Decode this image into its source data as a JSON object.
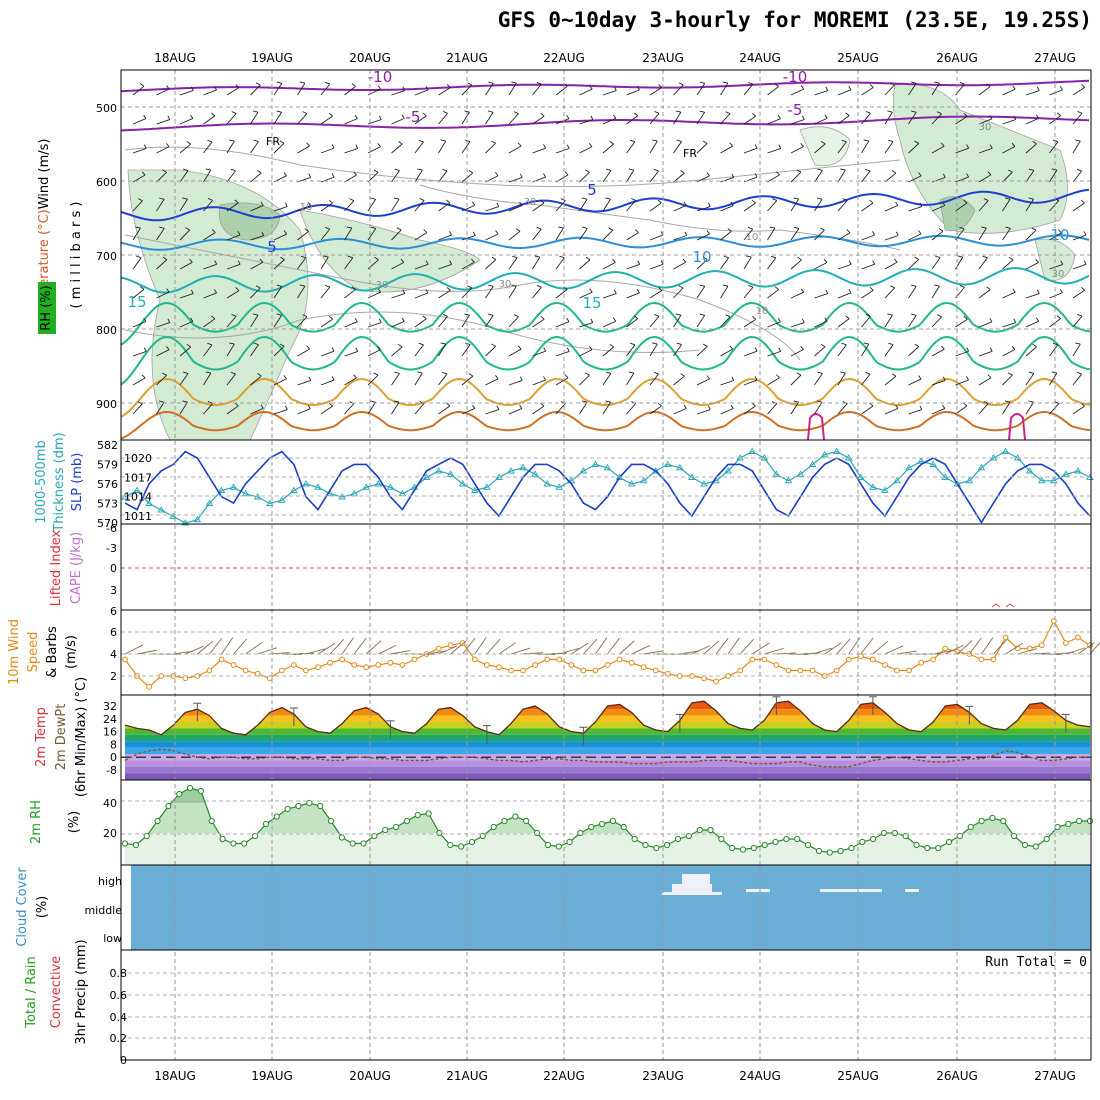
{
  "title": "GFS 0~10day 3-hourly for MOREMI (23.5E, 19.25S)",
  "dates": [
    "18AUG",
    "19AUG",
    "20AUG",
    "21AUG",
    "22AUG",
    "23AUG",
    "24AUG",
    "25AUG",
    "26AUG",
    "27AUG"
  ],
  "chart_data": [
    {
      "type": "line",
      "name": "upper-air",
      "ylabel_parts": [
        {
          "text": "RH (%)",
          "color": "#1f9e1f"
        },
        {
          "text": "Temperature (°C)",
          "color": "#d05a2a"
        },
        {
          "text": "Wind (m/s)",
          "color": "#000000"
        },
        {
          "text": "( m i l l i b a r s )",
          "color": "#000000"
        }
      ],
      "y_axis": {
        "label": "millibars",
        "ticks": [
          500,
          600,
          700,
          800,
          900
        ],
        "ylim": [
          450,
          950
        ],
        "inverted": true
      },
      "contour_labels": [
        "-10",
        "-10",
        "-5",
        "-5",
        "FR",
        "FR",
        "5",
        "5",
        "10",
        "10",
        "15",
        "15",
        "30",
        "30",
        "30",
        "30",
        "30",
        "10",
        "10",
        "10"
      ],
      "freezing_level_mb": [
        612,
        608,
        605,
        603,
        602,
        603,
        605,
        606,
        607,
        606,
        604,
        603,
        602,
        605,
        608,
        610,
        612,
        615,
        616,
        614,
        612,
        610,
        612,
        615,
        620,
        618,
        616,
        614,
        615,
        618,
        616,
        614
      ]
    },
    {
      "type": "line",
      "name": "slp-thickness",
      "ylabel_parts": [
        {
          "text": "1000-500mb",
          "color": "#2aa8b8"
        },
        {
          "text": "Thickness (dm)",
          "color": "#2aa8b8"
        },
        {
          "text": "SLP (mb)",
          "color": "#1a3fc8"
        }
      ],
      "y_axis_left": {
        "label": "Thickness (dm)",
        "ticks": [
          570,
          573,
          576,
          579,
          582
        ]
      },
      "y_axis_right": {
        "label": "SLP (mb)",
        "ticks": [
          1011,
          1014,
          1017,
          1020
        ]
      },
      "series": [
        {
          "name": "SLP (mb)",
          "color": "#1a3fc8",
          "values": [
            1013,
            1012,
            1016,
            1018,
            1019,
            1021,
            1020,
            1017,
            1014,
            1013,
            1016,
            1018,
            1020,
            1021,
            1019,
            1014,
            1012,
            1015,
            1018,
            1019,
            1019,
            1017,
            1014,
            1012,
            1015,
            1018,
            1019,
            1020,
            1019,
            1016,
            1013,
            1011,
            1014,
            1017,
            1019,
            1019,
            1018,
            1016,
            1013,
            1012,
            1014,
            1017,
            1019,
            1019,
            1018,
            1016,
            1013,
            1011,
            1014,
            1017,
            1019,
            1019,
            1018,
            1015,
            1012,
            1011,
            1014,
            1017,
            1019,
            1020,
            1019,
            1016,
            1013,
            1011,
            1014,
            1017,
            1019,
            1020,
            1019,
            1016,
            1013,
            1010,
            1013,
            1016,
            1018,
            1019,
            1019,
            1018,
            1016,
            1013,
            1011
          ]
        },
        {
          "name": "1000-500mb Thickness (dm)",
          "color": "#2aa8b8",
          "values": [
            574,
            575,
            573,
            572,
            571,
            570,
            570.5,
            573,
            575,
            575.5,
            574.5,
            574,
            573,
            573.5,
            575,
            576,
            575.5,
            574.5,
            574,
            574.5,
            575.5,
            576,
            575.5,
            574.5,
            575.5,
            577,
            578,
            577.5,
            576,
            575,
            575.5,
            577,
            578,
            578.5,
            577.5,
            576,
            575.5,
            576.5,
            578,
            579,
            578.5,
            577,
            576,
            576.5,
            578,
            579,
            578.5,
            577,
            576,
            576.5,
            578,
            580,
            581,
            580,
            577.5,
            576.5,
            577.5,
            579,
            580.5,
            581,
            580,
            577,
            575.5,
            575,
            576.5,
            578.5,
            579.5,
            579,
            577,
            576,
            576.5,
            578.5,
            580,
            581,
            580,
            578,
            576.5,
            576.5,
            577.5,
            578,
            577
          ]
        }
      ]
    },
    {
      "type": "line",
      "name": "instability",
      "ylabel_parts": [
        {
          "text": "Lifted Index",
          "color": "#d8323c"
        },
        {
          "text": "CAPE (J/kg)",
          "color": "#c070d0"
        }
      ],
      "y_axis": {
        "label": "Lifted Index",
        "ticks": [
          "-6",
          "-3",
          "0",
          "3",
          "6"
        ],
        "ylim": [
          -6,
          6
        ]
      },
      "series": []
    },
    {
      "type": "line",
      "name": "10m-wind",
      "ylabel_parts": [
        {
          "text": "10m Wind",
          "color": "#e68a14"
        },
        {
          "text": "Speed",
          "color": "#e68a14"
        },
        {
          "text": "& Barbs",
          "color": "#000000"
        },
        {
          "text": "(m/s)",
          "color": "#000000"
        }
      ],
      "y_axis": {
        "label": "(m/s)",
        "ticks": [
          2,
          4,
          6
        ],
        "ylim": [
          0,
          8
        ]
      },
      "series": [
        {
          "name": "10m Wind Speed",
          "color": "#e68a14",
          "values": [
            3.5,
            2,
            1,
            2,
            2,
            1.8,
            2,
            2.5,
            3.5,
            3,
            2.5,
            2.2,
            1.8,
            2.5,
            3,
            2.5,
            2.8,
            3.2,
            3.5,
            3,
            2.8,
            3,
            3.2,
            3,
            3.5,
            4,
            4.5,
            4.8,
            5,
            3.5,
            3,
            2.8,
            2.5,
            2.5,
            3,
            3.5,
            3.5,
            3,
            2.5,
            2.5,
            3,
            3.5,
            3.2,
            2.8,
            2.5,
            2.2,
            2,
            2,
            1.8,
            1.5,
            2,
            2.5,
            3.5,
            3.5,
            3,
            2.5,
            2.5,
            2.5,
            2,
            2.5,
            3.5,
            3.8,
            3.5,
            3,
            2.5,
            2.5,
            3.2,
            3.5,
            4.5,
            4.2,
            4,
            3.5,
            3.5,
            5.5,
            4.5,
            4.5,
            4.8,
            7,
            5,
            5.5,
            4.8
          ]
        }
      ]
    },
    {
      "type": "area",
      "name": "2m-temp",
      "ylabel_parts": [
        {
          "text": "2m Temp",
          "color": "#d8323c"
        },
        {
          "text": "2m DewPt",
          "color": "#7a5a30"
        },
        {
          "text": "(6hr Min/Max) (°C)",
          "color": "#000000"
        }
      ],
      "y_axis": {
        "label": "(°C)",
        "ticks": [
          32,
          24,
          16,
          8,
          0,
          -8
        ]
      },
      "series": [
        {
          "name": "2m Temp",
          "color": "#7a2020",
          "values": [
            20,
            18,
            17,
            14,
            20,
            28,
            30,
            26,
            18,
            15,
            14,
            20,
            28,
            31,
            27,
            19,
            16,
            15,
            21,
            29,
            31,
            27,
            19,
            16,
            15,
            21,
            30,
            31,
            26,
            19,
            16,
            14,
            21,
            30,
            32,
            27,
            19,
            16,
            15,
            22,
            32,
            33,
            28,
            20,
            17,
            16,
            23,
            34,
            35,
            29,
            21,
            18,
            17,
            23,
            34,
            35,
            29,
            21,
            17,
            16,
            23,
            33,
            34,
            28,
            21,
            17,
            16,
            22,
            32,
            33,
            28,
            21,
            18,
            17,
            23,
            33,
            34,
            29,
            23,
            20,
            19
          ]
        },
        {
          "name": "2m DewPt",
          "color": "#7a5a30",
          "values": [
            -2,
            2,
            4,
            5,
            4,
            2,
            0,
            -1,
            0,
            0,
            -1,
            -1,
            0,
            0,
            -1,
            -1,
            -1,
            -2,
            -2,
            0,
            0,
            -1,
            -1,
            -2,
            -2,
            -2,
            -1,
            0,
            0,
            0,
            -1,
            -2,
            -2,
            -3,
            -2,
            -1,
            -1,
            -2,
            -2,
            -3,
            -3,
            -3,
            -4,
            -4,
            -4,
            -3,
            -3,
            -3,
            -2,
            -2,
            -2,
            -3,
            -4,
            -4,
            -4,
            -3,
            -3,
            -5,
            -6,
            -6,
            -6,
            -4,
            -2,
            -1,
            0,
            -1,
            -2,
            -3,
            -3,
            -2,
            -1,
            -1,
            1,
            4,
            3,
            0,
            -2,
            -2,
            -1,
            0,
            0
          ]
        }
      ]
    },
    {
      "type": "area",
      "name": "2m-rh",
      "ylabel_parts": [
        {
          "text": "2m RH",
          "color": "#1f9e1f"
        },
        {
          "text": "(%)",
          "color": "#000000"
        }
      ],
      "y_axis": {
        "label": "(%)",
        "ticks": [
          20,
          40
        ]
      },
      "series": [
        {
          "name": "2m RH",
          "color": "#1f9e1f",
          "values": [
            13,
            12,
            18,
            28,
            38,
            46,
            50,
            48,
            28,
            16,
            13,
            13,
            18,
            26,
            31,
            36,
            38,
            40,
            38,
            28,
            17,
            13,
            13,
            18,
            22,
            24,
            28,
            32,
            33,
            20,
            12,
            11,
            14,
            18,
            24,
            28,
            31,
            28,
            20,
            12,
            11,
            14,
            20,
            24,
            26,
            28,
            24,
            16,
            12,
            10,
            12,
            16,
            18,
            22,
            22,
            16,
            10,
            9,
            10,
            12,
            14,
            16,
            16,
            12,
            8,
            7,
            8,
            10,
            14,
            16,
            20,
            20,
            18,
            12,
            10,
            10,
            14,
            18,
            24,
            28,
            30,
            28,
            18,
            12,
            11,
            16,
            24,
            26,
            28,
            28
          ]
        }
      ]
    },
    {
      "type": "area",
      "name": "cloud-cover",
      "ylabel_parts": [
        {
          "text": "Cloud Cover",
          "color": "#3a8fc8"
        },
        {
          "text": "(%)",
          "color": "#000000"
        }
      ],
      "y_axis": {
        "label": "(%)",
        "ticks": [
          "high",
          "middle",
          "low"
        ]
      },
      "series": []
    },
    {
      "type": "bar",
      "name": "precip",
      "ylabel_parts": [
        {
          "text": "Total / Rain",
          "color": "#1f9e1f"
        },
        {
          "text": "Convective",
          "color": "#d8323c"
        },
        {
          "text": "3hr Precip (mm)",
          "color": "#000000"
        }
      ],
      "y_axis": {
        "label": "3hr Precip (mm)",
        "ticks": [
          "0",
          "0.2",
          "0.4",
          "0.6",
          "0.8"
        ],
        "ylim": [
          0,
          1
        ]
      },
      "annotation": "Run Total = 0",
      "series": []
    }
  ]
}
